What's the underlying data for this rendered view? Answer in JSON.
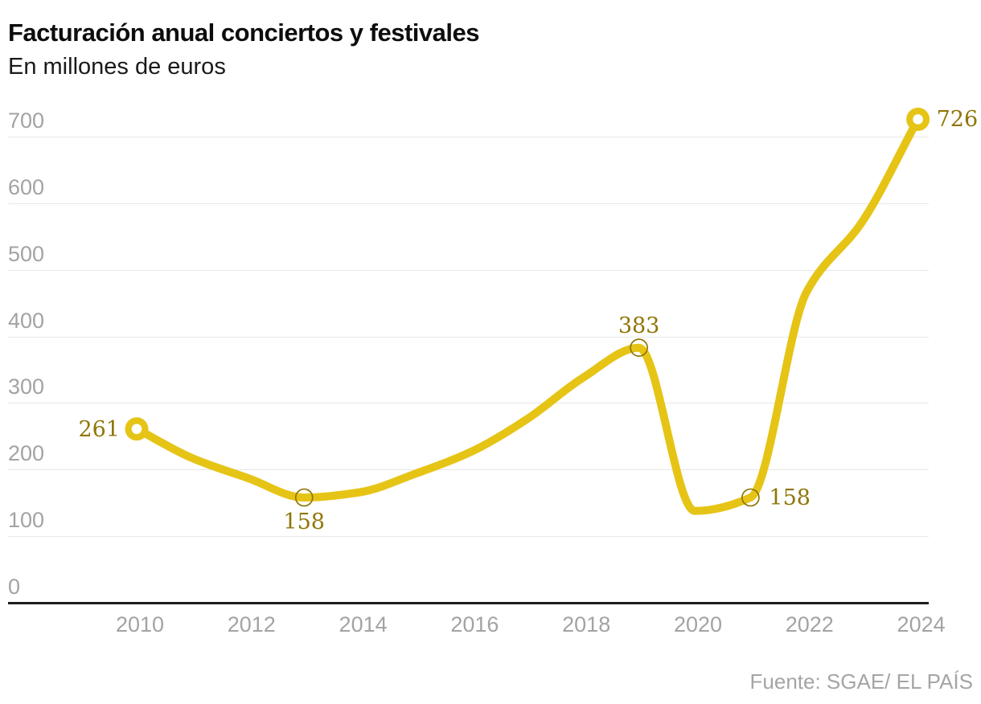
{
  "header": {
    "title": "Facturación anual conciertos y festivales",
    "subtitle": "En millones de euros"
  },
  "footer": {
    "source": "Fuente: SGAE/ EL PAÍS"
  },
  "chart_data": {
    "type": "line",
    "title": "Facturación anual conciertos y festivales",
    "subtitle": "En millones de euros",
    "xlabel": "",
    "ylabel": "En millones de euros",
    "x": [
      2010,
      2011,
      2012,
      2013,
      2014,
      2015,
      2016,
      2017,
      2018,
      2019,
      2020,
      2021,
      2022,
      2023,
      2024
    ],
    "series": [
      {
        "name": "Facturación anual conciertos y festivales (millones de euros)",
        "values": [
          261,
          217,
          187,
          158,
          166,
          194,
          227,
          276,
          338,
          383,
          138,
          158,
          466,
          572,
          726
        ]
      }
    ],
    "labeled_points": [
      {
        "year": 2010,
        "value": 261,
        "label": "261",
        "marker": "donut",
        "label_pos": "left"
      },
      {
        "year": 2013,
        "value": 158,
        "label": "158",
        "marker": "ring",
        "label_pos": "below"
      },
      {
        "year": 2019,
        "value": 383,
        "label": "383",
        "marker": "ring",
        "label_pos": "above"
      },
      {
        "year": 2021,
        "value": 158,
        "label": "158",
        "marker": "ring",
        "label_pos": "right"
      },
      {
        "year": 2024,
        "value": 726,
        "label": "726",
        "marker": "donut",
        "label_pos": "right"
      }
    ],
    "yticks": [
      0,
      100,
      200,
      300,
      400,
      500,
      600,
      700
    ],
    "xticks": [
      2010,
      2012,
      2014,
      2016,
      2018,
      2020,
      2022,
      2024
    ],
    "ylim": [
      0,
      700
    ],
    "grid": "horizontal",
    "legend": "none",
    "colors": {
      "line": "#e6c416",
      "marker_fill": "#e6c416",
      "marker_hole": "#ffffff",
      "ring_stroke": "#8f7606",
      "point_label": "#8f7606",
      "axis_text": "#a3a3a3",
      "gridline": "#e7e7e7",
      "zero_line": "#1d1d1d",
      "title": "#0d0d0d"
    }
  }
}
